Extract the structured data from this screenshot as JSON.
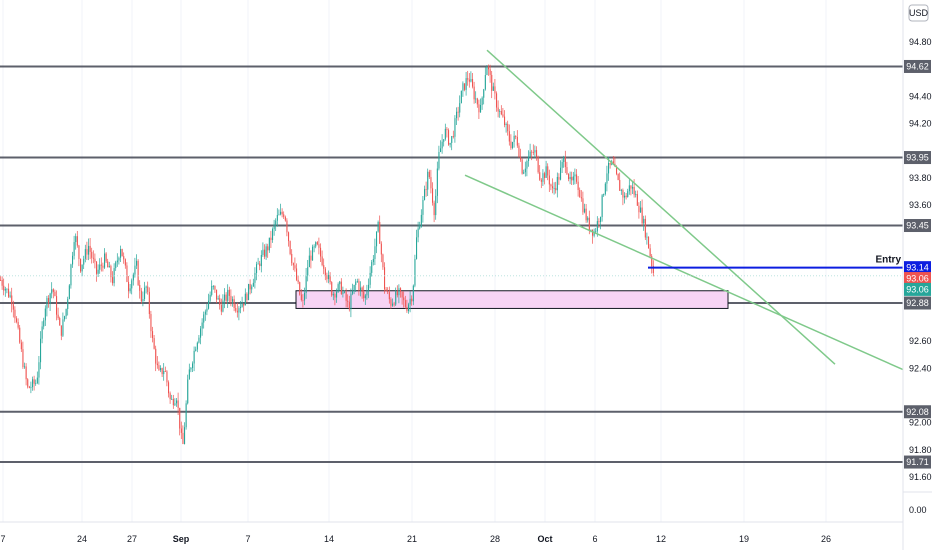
{
  "chart_data": {
    "type": "candlestick",
    "currency": "USD",
    "y_axis": {
      "min": 91.45,
      "max": 94.95,
      "ticks": [
        "94.80",
        "94.40",
        "94.20",
        "93.80",
        "93.60",
        "92.60",
        "92.40",
        "92.00",
        "91.80",
        "91.60"
      ],
      "bottom_label": "0.00"
    },
    "x_axis": {
      "ticks": [
        {
          "label": "7",
          "bold": false
        },
        {
          "label": "24",
          "bold": false
        },
        {
          "label": "27",
          "bold": false
        },
        {
          "label": "Sep",
          "bold": true
        },
        {
          "label": "7",
          "bold": false
        },
        {
          "label": "14",
          "bold": false
        },
        {
          "label": "21",
          "bold": false
        },
        {
          "label": "28",
          "bold": false
        },
        {
          "label": "Oct",
          "bold": true
        },
        {
          "label": "6",
          "bold": false
        },
        {
          "label": "12",
          "bold": false
        },
        {
          "label": "19",
          "bold": false
        },
        {
          "label": "26",
          "bold": false
        }
      ]
    },
    "horizontal_levels": [
      {
        "value": 94.62,
        "label": "94.62",
        "color": "#5d606b"
      },
      {
        "value": 93.95,
        "label": "93.95",
        "color": "#5d606b"
      },
      {
        "value": 93.45,
        "label": "93.45",
        "color": "#5d606b"
      },
      {
        "value": 92.88,
        "label": "92.88",
        "color": "#5d606b"
      },
      {
        "value": 92.08,
        "label": "92.08",
        "color": "#5d606b"
      },
      {
        "value": 91.71,
        "label": "91.71",
        "color": "#5d606b"
      }
    ],
    "entry": {
      "value": 93.14,
      "label": "93.14",
      "text": "Entry",
      "color": "#0c1ee0"
    },
    "price_badges": [
      {
        "value": 93.06,
        "label": "93.06",
        "color": "#ef5350"
      },
      {
        "value": 92.98,
        "label": "93.06",
        "color": "#26a69a"
      }
    ],
    "demand_zone": {
      "y_top": 92.97,
      "y_bottom": 92.84,
      "fill": "#f7d4f5",
      "border": "#131722"
    },
    "trendlines": [
      {
        "from": [
          487,
          94.74
        ],
        "to": [
          835,
          92.43
        ],
        "color": "#7fc98a"
      },
      {
        "from": [
          465,
          93.82
        ],
        "to": [
          903,
          92.39
        ],
        "color": "#7fc98a"
      }
    ],
    "series": {
      "up_color": "#26a69a",
      "down_color": "#ef5350"
    },
    "price_path": [
      [
        0,
        93.05
      ],
      [
        12,
        92.9
      ],
      [
        20,
        92.55
      ],
      [
        27,
        92.25
      ],
      [
        36,
        92.3
      ],
      [
        44,
        92.85
      ],
      [
        52,
        93.0
      ],
      [
        60,
        92.65
      ],
      [
        66,
        92.85
      ],
      [
        74,
        93.4
      ],
      [
        80,
        93.15
      ],
      [
        88,
        93.3
      ],
      [
        96,
        93.1
      ],
      [
        104,
        93.2
      ],
      [
        112,
        93.05
      ],
      [
        120,
        93.3
      ],
      [
        128,
        93.0
      ],
      [
        136,
        93.15
      ],
      [
        140,
        92.9
      ],
      [
        146,
        93.0
      ],
      [
        152,
        92.6
      ],
      [
        158,
        92.35
      ],
      [
        164,
        92.4
      ],
      [
        170,
        92.15
      ],
      [
        176,
        92.2
      ],
      [
        182,
        91.8
      ],
      [
        188,
        92.35
      ],
      [
        196,
        92.6
      ],
      [
        204,
        92.8
      ],
      [
        212,
        93.0
      ],
      [
        220,
        92.85
      ],
      [
        228,
        92.95
      ],
      [
        236,
        92.85
      ],
      [
        244,
        92.9
      ],
      [
        252,
        93.05
      ],
      [
        260,
        93.2
      ],
      [
        268,
        93.3
      ],
      [
        276,
        93.5
      ],
      [
        284,
        93.55
      ],
      [
        290,
        93.25
      ],
      [
        296,
        93.05
      ],
      [
        302,
        92.85
      ],
      [
        308,
        93.2
      ],
      [
        316,
        93.3
      ],
      [
        324,
        93.15
      ],
      [
        332,
        92.95
      ],
      [
        340,
        93.0
      ],
      [
        348,
        92.85
      ],
      [
        356,
        93.05
      ],
      [
        364,
        92.9
      ],
      [
        372,
        93.2
      ],
      [
        378,
        93.45
      ],
      [
        384,
        93.0
      ],
      [
        390,
        92.88
      ],
      [
        398,
        92.95
      ],
      [
        406,
        92.85
      ],
      [
        412,
        92.95
      ],
      [
        416,
        93.35
      ],
      [
        422,
        93.6
      ],
      [
        428,
        93.85
      ],
      [
        434,
        93.55
      ],
      [
        438,
        93.95
      ],
      [
        444,
        94.15
      ],
      [
        450,
        94.05
      ],
      [
        456,
        94.25
      ],
      [
        462,
        94.45
      ],
      [
        468,
        94.55
      ],
      [
        474,
        94.4
      ],
      [
        480,
        94.3
      ],
      [
        486,
        94.65
      ],
      [
        492,
        94.45
      ],
      [
        498,
        94.3
      ],
      [
        504,
        94.2
      ],
      [
        510,
        94.05
      ],
      [
        516,
        94.1
      ],
      [
        522,
        93.85
      ],
      [
        528,
        93.95
      ],
      [
        534,
        94.0
      ],
      [
        540,
        93.8
      ],
      [
        546,
        93.85
      ],
      [
        552,
        93.7
      ],
      [
        558,
        93.8
      ],
      [
        564,
        93.95
      ],
      [
        570,
        93.75
      ],
      [
        576,
        93.8
      ],
      [
        582,
        93.6
      ],
      [
        588,
        93.45
      ],
      [
        594,
        93.4
      ],
      [
        600,
        93.55
      ],
      [
        606,
        93.85
      ],
      [
        612,
        93.9
      ],
      [
        618,
        93.75
      ],
      [
        624,
        93.65
      ],
      [
        630,
        93.75
      ],
      [
        636,
        93.65
      ],
      [
        642,
        93.5
      ],
      [
        648,
        93.3
      ],
      [
        654,
        93.06
      ]
    ]
  }
}
